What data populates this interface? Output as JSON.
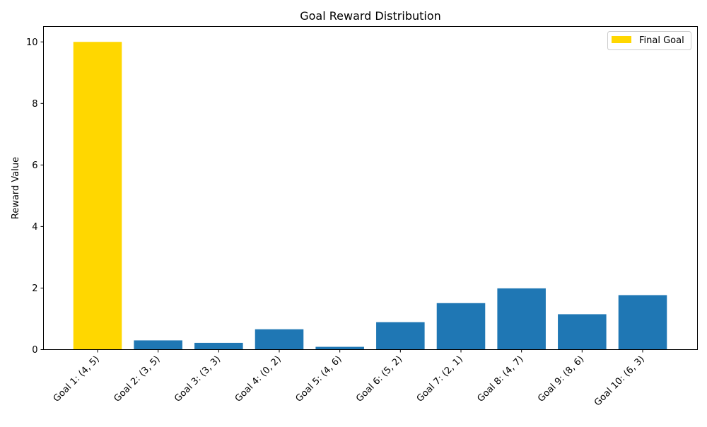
{
  "chart_data": {
    "type": "bar",
    "title": "Goal Reward Distribution",
    "xlabel": "",
    "ylabel": "Reward Value",
    "categories": [
      "Goal 1: (4, 5)",
      "Goal 2: (3, 5)",
      "Goal 3: (3, 3)",
      "Goal 4: (0, 2)",
      "Goal 5: (4, 6)",
      "Goal 6: (5, 2)",
      "Goal 7: (2, 1)",
      "Goal 8: (4, 7)",
      "Goal 9: (8, 6)",
      "Goal 10: (6, 3)"
    ],
    "values": [
      10.0,
      0.3,
      0.22,
      0.66,
      0.09,
      0.89,
      1.51,
      1.99,
      1.15,
      1.77
    ],
    "highlight_index": 0,
    "colors": {
      "default_bar": "#1f77b4",
      "highlight_bar": "#ffd700"
    },
    "ylim": [
      0,
      10.5
    ],
    "yticks": [
      0,
      2,
      4,
      6,
      8,
      10
    ],
    "grid": false,
    "legend": {
      "placement": "top-right",
      "entries": [
        {
          "label": "Final Goal",
          "color": "#ffd700"
        }
      ]
    }
  }
}
